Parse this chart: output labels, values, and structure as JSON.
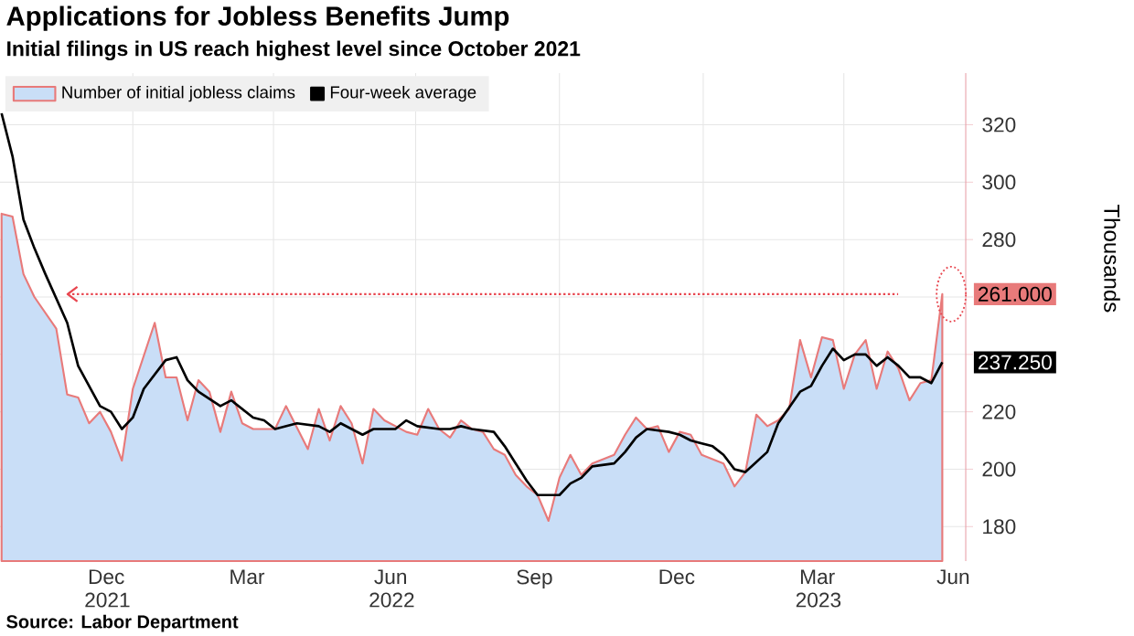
{
  "chart_data": {
    "type": "line",
    "title": "Applications for Jobless Benefits Jump",
    "subtitle": "Initial filings in US reach highest level since October 2021",
    "ylabel": "Thousands",
    "xlim": [
      "2021-10-08",
      "2023-06-18"
    ],
    "ylim": [
      168,
      338
    ],
    "xticks": [
      {
        "value": "2021-12-15",
        "label": "Dec 2021"
      },
      {
        "value": "2022-01-01",
        "label": null
      },
      {
        "value": "2022-03-15",
        "label": "Mar"
      },
      {
        "value": "2022-04-01",
        "label": null
      },
      {
        "value": "2022-06-15",
        "label": "Jun 2022"
      },
      {
        "value": "2022-07-01",
        "label": null
      },
      {
        "value": "2022-09-15",
        "label": "Sep"
      },
      {
        "value": "2022-10-01",
        "label": null
      },
      {
        "value": "2022-12-15",
        "label": "Dec"
      },
      {
        "value": "2023-01-01",
        "label": null
      },
      {
        "value": "2023-03-15",
        "label": "Mar 2023"
      },
      {
        "value": "2023-04-01",
        "label": null
      },
      {
        "value": "2023-06-10",
        "label": "Jun"
      }
    ],
    "yticks": [
      180,
      200,
      220,
      {
        "value": 240,
        "label": null
      },
      {
        "value": 260,
        "label": null
      },
      280,
      300,
      320
    ],
    "grid": true,
    "legend": "top left",
    "marker": "none",
    "line_style": "solid",
    "series": [
      {
        "name": "Number of initial jobless claims",
        "type": "area",
        "color": "#e87a7a",
        "x": [
          "2021-10-09",
          "2021-10-16",
          "2021-10-23",
          "2021-10-30",
          "2021-11-13",
          "2021-11-20",
          "2021-11-27",
          "2021-12-04",
          "2021-12-11",
          "2021-12-18",
          "2021-12-25",
          "2022-01-01",
          "2022-01-15",
          "2022-01-22",
          "2022-01-29",
          "2022-02-05",
          "2022-02-12",
          "2022-02-19",
          "2022-02-26",
          "2022-03-05",
          "2022-03-12",
          "2022-03-19",
          "2022-04-02",
          "2022-04-09",
          "2022-04-23",
          "2022-04-30",
          "2022-05-07",
          "2022-05-14",
          "2022-05-21",
          "2022-05-28",
          "2022-06-04",
          "2022-06-11",
          "2022-06-25",
          "2022-07-02",
          "2022-07-09",
          "2022-07-16",
          "2022-07-23",
          "2022-07-30",
          "2022-08-06",
          "2022-08-13",
          "2022-08-20",
          "2022-08-27",
          "2022-09-03",
          "2022-09-10",
          "2022-09-17",
          "2022-09-24",
          "2022-10-01",
          "2022-10-08",
          "2022-10-15",
          "2022-10-22",
          "2022-11-05",
          "2022-11-12",
          "2022-11-19",
          "2022-11-26",
          "2022-12-03",
          "2022-12-10",
          "2022-12-17",
          "2022-12-24",
          "2022-12-31",
          "2023-01-14",
          "2023-01-21",
          "2023-01-28",
          "2023-02-04",
          "2023-02-11",
          "2023-02-18",
          "2023-02-25",
          "2023-03-04",
          "2023-03-11",
          "2023-03-18",
          "2023-03-25",
          "2023-04-01",
          "2023-04-08",
          "2023-04-15",
          "2023-04-22",
          "2023-04-29",
          "2023-05-06",
          "2023-05-13",
          "2023-05-20",
          "2023-05-27",
          "2023-06-03"
        ],
        "values": [
          289,
          288,
          268,
          260,
          249,
          226,
          225,
          216,
          220,
          213,
          203,
          228,
          251,
          232,
          232,
          217,
          231,
          227,
          213,
          227,
          216,
          214,
          214,
          222,
          207,
          221,
          210,
          222,
          216,
          202,
          221,
          217,
          213,
          212,
          221,
          214,
          211,
          217,
          214,
          213,
          207,
          205,
          198,
          194,
          191,
          182,
          197,
          205,
          198,
          202,
          205,
          212,
          218,
          214,
          215,
          206,
          213,
          212,
          205,
          202,
          194,
          199,
          219,
          215,
          217,
          221,
          245,
          232,
          246,
          245,
          228,
          240,
          245,
          228,
          241,
          235,
          224,
          230,
          231,
          261
        ],
        "value_labels": [
          null,
          null,
          null,
          null,
          null,
          null,
          null,
          null,
          null,
          null,
          null,
          null,
          null,
          null,
          null,
          null,
          null,
          null,
          null,
          null,
          null,
          null,
          null,
          null,
          null,
          null,
          null,
          null,
          null,
          null,
          null,
          null,
          null,
          null,
          null,
          null,
          null,
          null,
          null,
          null,
          null,
          null,
          null,
          null,
          null,
          null,
          null,
          null,
          null,
          null,
          null,
          null,
          null,
          null,
          null,
          null,
          null,
          null,
          null,
          null,
          null,
          null,
          null,
          null,
          null,
          null,
          null,
          null,
          null,
          null,
          null,
          null,
          null,
          null,
          null,
          null,
          null,
          null,
          null,
          "261.000"
        ]
      },
      {
        "name": "Four-week average",
        "color": "#000000",
        "x": [
          "2021-10-09",
          "2021-10-16",
          "2021-10-23",
          "2021-10-30",
          "2021-11-06",
          "2021-11-20",
          "2021-11-27",
          "2021-12-11",
          "2021-12-18",
          "2021-12-25",
          "2022-01-01",
          "2022-01-08",
          "2022-01-22",
          "2022-01-29",
          "2022-02-05",
          "2022-02-12",
          "2022-02-26",
          "2022-03-05",
          "2022-03-19",
          "2022-03-26",
          "2022-04-02",
          "2022-04-16",
          "2022-04-30",
          "2022-05-07",
          "2022-05-14",
          "2022-05-28",
          "2022-06-04",
          "2022-06-18",
          "2022-06-25",
          "2022-07-02",
          "2022-07-16",
          "2022-07-23",
          "2022-07-30",
          "2022-08-06",
          "2022-08-20",
          "2022-08-27",
          "2022-09-03",
          "2022-09-10",
          "2022-09-17",
          "2022-10-01",
          "2022-10-08",
          "2022-10-15",
          "2022-10-22",
          "2022-11-05",
          "2022-11-12",
          "2022-11-19",
          "2022-11-26",
          "2022-12-10",
          "2022-12-17",
          "2022-12-24",
          "2023-01-07",
          "2023-01-14",
          "2023-01-21",
          "2023-01-28",
          "2023-02-11",
          "2023-02-18",
          "2023-03-04",
          "2023-03-11",
          "2023-03-18",
          "2023-03-25",
          "2023-04-01",
          "2023-04-08",
          "2023-04-15",
          "2023-04-22",
          "2023-04-29",
          "2023-05-06",
          "2023-05-13",
          "2023-05-20",
          "2023-05-27",
          "2023-06-03"
        ],
        "values": [
          324,
          309,
          287,
          277,
          268,
          251,
          236,
          222,
          220,
          214,
          218,
          228,
          238,
          239,
          231,
          227,
          222,
          224,
          218,
          217,
          214,
          216,
          215,
          213,
          216,
          212,
          214,
          214,
          217,
          215,
          214,
          214,
          215,
          214,
          213,
          208,
          202,
          196,
          191,
          191,
          195,
          197,
          201,
          202,
          206,
          211,
          214,
          213,
          212,
          210,
          208,
          205,
          200,
          199,
          206,
          216,
          227,
          229,
          236,
          242,
          238,
          240,
          240,
          236,
          239,
          236,
          232,
          232,
          230,
          237.25
        ],
        "value_labels": [
          null,
          null,
          null,
          null,
          null,
          null,
          null,
          null,
          null,
          null,
          null,
          null,
          null,
          null,
          null,
          null,
          null,
          null,
          null,
          null,
          null,
          null,
          null,
          null,
          null,
          null,
          null,
          null,
          null,
          null,
          null,
          null,
          null,
          null,
          null,
          null,
          null,
          null,
          null,
          null,
          null,
          null,
          null,
          null,
          null,
          null,
          null,
          null,
          null,
          null,
          null,
          null,
          null,
          null,
          null,
          null,
          null,
          null,
          null,
          null,
          null,
          null,
          null,
          null,
          null,
          null,
          null,
          null,
          null,
          "237.250"
        ]
      }
    ],
    "ref_lines": [
      {
        "axis": "y",
        "value": 261,
        "color": "#e8464f",
        "line_style": "dotted"
      }
    ],
    "annotations": [
      "Source: Labor Department"
    ]
  }
}
